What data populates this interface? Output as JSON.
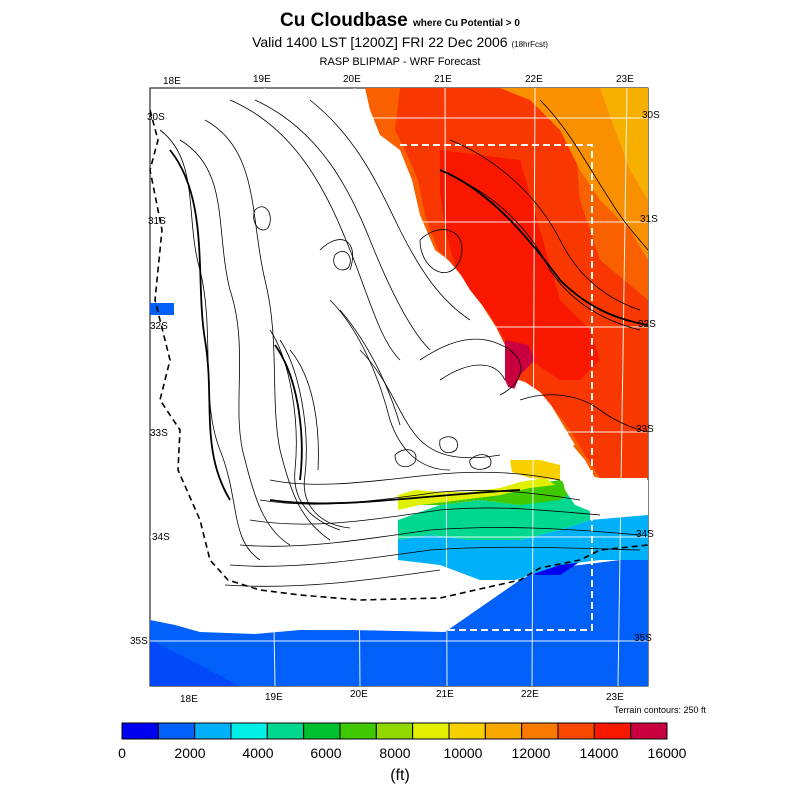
{
  "header": {
    "title": "Cu Cloudbase",
    "title_suffix": "where Cu Potential > 0",
    "subtitle": "Valid 1400 LST [1200Z] FRI 22 Dec 2006",
    "subtitle_suffix": "(18hrFcst)",
    "source": "RASP BLIPMAP - WRF Forecast"
  },
  "map": {
    "lon_labels_top": [
      "18E",
      "19E",
      "20E",
      "21E",
      "22E",
      "23E"
    ],
    "lon_labels_bottom": [
      "18E",
      "19E",
      "20E",
      "21E",
      "22E",
      "23E"
    ],
    "lat_labels_left": [
      "30S",
      "31S",
      "32S",
      "33S",
      "34S",
      "35S"
    ],
    "lat_labels_right": [
      "30S",
      "31S",
      "32S",
      "33S",
      "34S",
      "35S"
    ],
    "terrain_note": "Terrain contours: 250 ft"
  },
  "colorbar": {
    "colors": [
      "#0000f0",
      "#0060f8",
      "#00b0f8",
      "#00f0e8",
      "#00d890",
      "#00c030",
      "#40c800",
      "#90d800",
      "#e0f000",
      "#f8d000",
      "#f8a800",
      "#f87800",
      "#f84800",
      "#f81800",
      "#c80040"
    ],
    "tick_labels": [
      "0",
      "2000",
      "4000",
      "6000",
      "8000",
      "10000",
      "12000",
      "14000",
      "16000"
    ],
    "units": "(ft)"
  }
}
